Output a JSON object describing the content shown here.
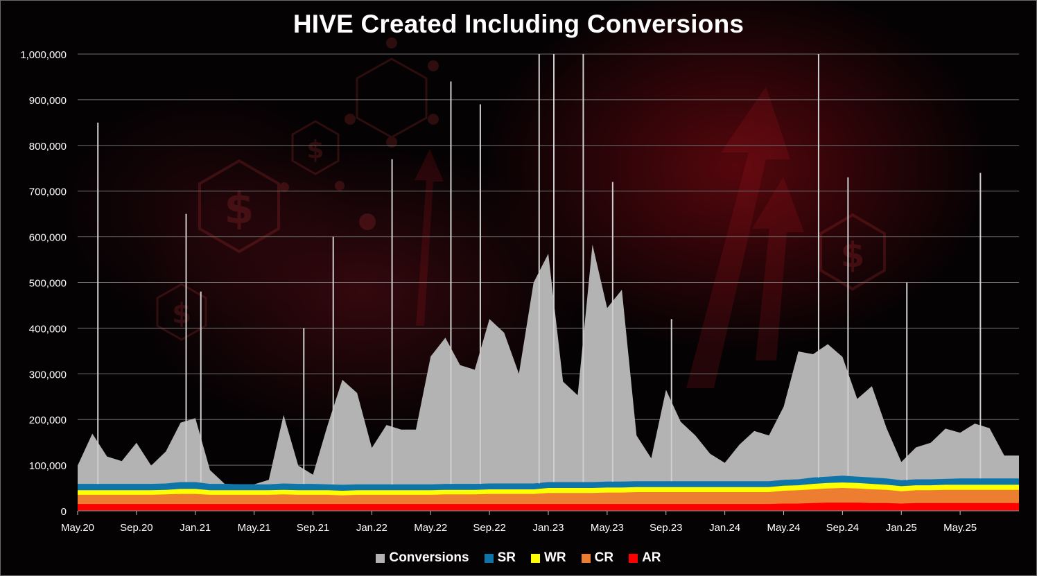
{
  "chart_data": {
    "type": "area",
    "title": "HIVE Created Including Conversions",
    "xlabel": "",
    "ylabel": "",
    "ylim": [
      0,
      1000000
    ],
    "yticks": [
      0,
      100000,
      200000,
      300000,
      400000,
      500000,
      600000,
      700000,
      800000,
      900000,
      1000000
    ],
    "ytick_labels": [
      "0",
      "100,000",
      "200,000",
      "300,000",
      "400,000",
      "500,000",
      "600,000",
      "700,000",
      "800,000",
      "900,000",
      "1,000,000"
    ],
    "x_tick_labels": [
      "May.20",
      "Sep.20",
      "Jan.21",
      "May.21",
      "Sep.21",
      "Jan.22",
      "May.22",
      "Sep.22",
      "Jan.23",
      "May.23",
      "Sep.23",
      "Jan.24",
      "May.24",
      "Sep.24",
      "Jan.25",
      "May.25"
    ],
    "x_range": [
      "2020-05",
      "2025-09"
    ],
    "grid": "horizontal",
    "legend_position": "bottom",
    "stacking": "stacked",
    "series_order_bottom_to_top": [
      "AR",
      "CR",
      "WR",
      "SR",
      "Conversions"
    ],
    "x": [
      "2020-05",
      "2020-06",
      "2020-07",
      "2020-08",
      "2020-09",
      "2020-10",
      "2020-11",
      "2020-12",
      "2021-01",
      "2021-02",
      "2021-03",
      "2021-04",
      "2021-05",
      "2021-06",
      "2021-07",
      "2021-08",
      "2021-09",
      "2021-10",
      "2021-11",
      "2021-12",
      "2022-01",
      "2022-02",
      "2022-03",
      "2022-04",
      "2022-05",
      "2022-06",
      "2022-07",
      "2022-08",
      "2022-09",
      "2022-10",
      "2022-11",
      "2022-12",
      "2023-01",
      "2023-02",
      "2023-03",
      "2023-04",
      "2023-05",
      "2023-06",
      "2023-07",
      "2023-08",
      "2023-09",
      "2023-10",
      "2023-11",
      "2023-12",
      "2024-01",
      "2024-02",
      "2024-03",
      "2024-04",
      "2024-05",
      "2024-06",
      "2024-07",
      "2024-08",
      "2024-09",
      "2024-10",
      "2024-11",
      "2024-12",
      "2025-01",
      "2025-02",
      "2025-03",
      "2025-04",
      "2025-05",
      "2025-06",
      "2025-07",
      "2025-08"
    ],
    "series": [
      {
        "name": "AR",
        "color": "#ff0000",
        "values": [
          15000,
          15000,
          15000,
          15000,
          15000,
          15000,
          15000,
          15000,
          15000,
          15000,
          15000,
          15000,
          15000,
          15000,
          15000,
          15000,
          15000,
          15000,
          15000,
          15000,
          15000,
          15000,
          15000,
          15000,
          15000,
          15000,
          15000,
          15000,
          15000,
          15000,
          15000,
          15000,
          15000,
          15000,
          15000,
          15000,
          15000,
          15000,
          15000,
          15000,
          15000,
          15000,
          15000,
          15000,
          15000,
          15000,
          15000,
          15000,
          16000,
          16000,
          17000,
          18000,
          18000,
          18000,
          17000,
          17000,
          16000,
          17000,
          17000,
          17000,
          17000,
          17000,
          17000,
          17000
        ]
      },
      {
        "name": "CR",
        "color": "#ed7d31",
        "values": [
          20000,
          20000,
          20000,
          20000,
          20000,
          20000,
          21000,
          22000,
          22000,
          20000,
          20000,
          20000,
          20000,
          20000,
          21000,
          20000,
          20000,
          20000,
          19000,
          20000,
          20000,
          20000,
          20000,
          20000,
          20000,
          21000,
          21000,
          21000,
          22000,
          22000,
          22000,
          22000,
          24000,
          24000,
          24000,
          24000,
          25000,
          25000,
          26000,
          26000,
          26000,
          26000,
          26000,
          26000,
          26000,
          26000,
          26000,
          26000,
          28000,
          29000,
          30000,
          31000,
          32000,
          31000,
          30000,
          29000,
          27000,
          28000,
          28000,
          29000,
          29000,
          29000,
          29000,
          29000
        ]
      },
      {
        "name": "WR",
        "color": "#ffff00",
        "values": [
          10000,
          10000,
          10000,
          10000,
          10000,
          10000,
          10000,
          11000,
          11000,
          10000,
          10000,
          10000,
          10000,
          10000,
          10000,
          10000,
          10000,
          10000,
          10000,
          10000,
          10000,
          10000,
          10000,
          10000,
          10000,
          10000,
          10000,
          10000,
          10000,
          10000,
          10000,
          10000,
          11000,
          11000,
          11000,
          11000,
          11000,
          11000,
          11000,
          11000,
          11000,
          11000,
          11000,
          11000,
          11000,
          11000,
          11000,
          11000,
          11000,
          11000,
          12000,
          12000,
          12000,
          12000,
          12000,
          11000,
          11000,
          11000,
          11000,
          11000,
          11000,
          11000,
          11000,
          11000
        ]
      },
      {
        "name": "SR",
        "color": "#0f75a8",
        "values": [
          14000,
          14000,
          14000,
          14000,
          14000,
          14000,
          14000,
          15000,
          15000,
          14000,
          14000,
          13000,
          13000,
          13000,
          14000,
          14000,
          14000,
          13000,
          13000,
          13000,
          13000,
          13000,
          13000,
          13000,
          13000,
          13000,
          13000,
          13000,
          13000,
          13000,
          13000,
          13000,
          13000,
          13000,
          13000,
          13000,
          13000,
          13000,
          13000,
          13000,
          13000,
          13000,
          13000,
          13000,
          13000,
          13000,
          13000,
          13000,
          13000,
          13000,
          14000,
          14000,
          15000,
          14000,
          14000,
          14000,
          13000,
          13000,
          13000,
          13000,
          14000,
          14000,
          14000,
          14000
        ]
      },
      {
        "name": "Conversions",
        "color": "#b3b3b3",
        "values": [
          40000,
          110000,
          60000,
          50000,
          90000,
          40000,
          70000,
          130000,
          140000,
          30000,
          0,
          0,
          0,
          10000,
          150000,
          40000,
          20000,
          130000,
          230000,
          200000,
          80000,
          130000,
          120000,
          120000,
          280000,
          320000,
          260000,
          250000,
          360000,
          330000,
          240000,
          440000,
          500000,
          220000,
          190000,
          520000,
          380000,
          420000,
          100000,
          50000,
          200000,
          130000,
          100000,
          60000,
          40000,
          80000,
          110000,
          100000,
          160000,
          280000,
          270000,
          290000,
          260000,
          170000,
          200000,
          110000,
          40000,
          70000,
          80000,
          110000,
          100000,
          120000,
          110000,
          50000
        ]
      }
    ],
    "spikes": {
      "comment": "peak daily totals visible as thin spikes",
      "x": [
        "2020-06",
        "2020-12",
        "2021-01",
        "2021-08",
        "2021-10",
        "2022-02",
        "2022-06",
        "2022-08",
        "2022-12",
        "2023-01",
        "2023-03",
        "2023-05",
        "2023-09",
        "2024-07",
        "2024-09",
        "2025-01",
        "2025-06"
      ],
      "values": [
        850000,
        650000,
        480000,
        400000,
        600000,
        770000,
        940000,
        890000,
        1000000,
        1000000,
        1000000,
        720000,
        420000,
        1000000,
        730000,
        500000,
        740000
      ]
    }
  }
}
